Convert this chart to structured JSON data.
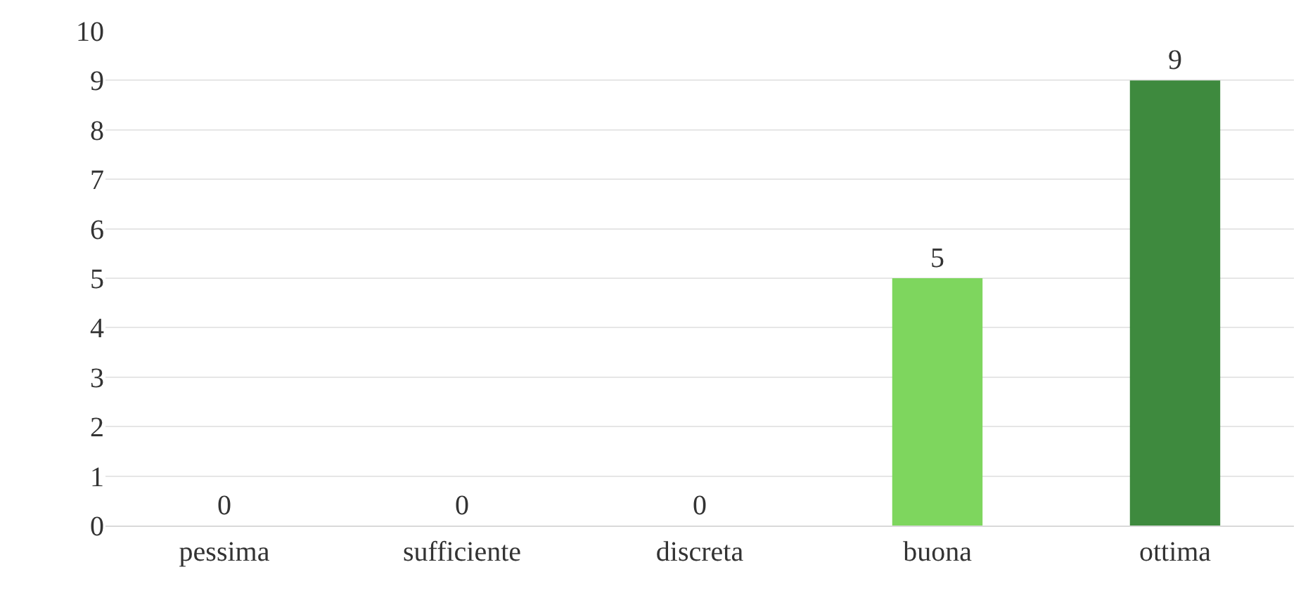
{
  "chart_data": {
    "type": "bar",
    "categories": [
      "pessima",
      "sufficiente",
      "discreta",
      "buona",
      "ottima"
    ],
    "values": [
      0,
      0,
      0,
      5,
      9
    ],
    "colors": [
      "#7ed65e",
      "#7ed65e",
      "#7ed65e",
      "#7ed65e",
      "#3e8a3e"
    ],
    "ylim": [
      0,
      10
    ],
    "yticks": [
      0,
      1,
      2,
      3,
      4,
      5,
      6,
      7,
      8,
      9,
      10
    ],
    "grid": "y",
    "data_labels": true,
    "legend": false
  }
}
